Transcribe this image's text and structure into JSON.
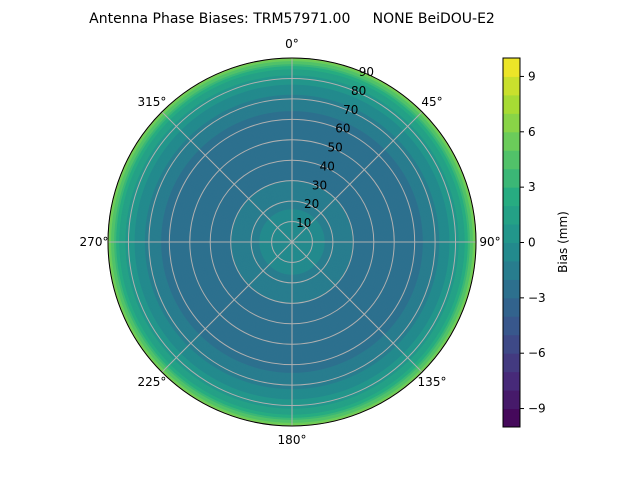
{
  "chart_data": {
    "type": "polar-contour",
    "title": "Antenna Phase Biases: TRM57971.00     NONE BeiDOU-E2",
    "angular_ticks": [
      "0°",
      "45°",
      "90°",
      "135°",
      "180°",
      "225°",
      "270°",
      "315°"
    ],
    "radial_ticks": [
      "10",
      "20",
      "30",
      "40",
      "50",
      "60",
      "70",
      "80",
      "90"
    ],
    "radial_range": [
      0,
      90
    ],
    "direction": "clockwise, 0° at top",
    "grid": true,
    "colormap": "viridis",
    "colorbar": {
      "label": "Bias (mm)",
      "range": [
        -10,
        10
      ],
      "levels_step": 1,
      "ticks": [
        "−9",
        "−6",
        "−3",
        "0",
        "3",
        "6",
        "9"
      ],
      "tick_values": [
        -9,
        -6,
        -3,
        0,
        3,
        6,
        9
      ]
    },
    "radial_profile_estimate": {
      "zenith_deg": [
        0,
        10,
        20,
        30,
        40,
        50,
        60,
        70,
        80,
        85,
        90
      ],
      "bias_mm": [
        -0.5,
        -0.7,
        -1.2,
        -2.0,
        -2.5,
        -2.6,
        -2.4,
        -1.5,
        0.5,
        2.0,
        6.0
      ]
    }
  }
}
